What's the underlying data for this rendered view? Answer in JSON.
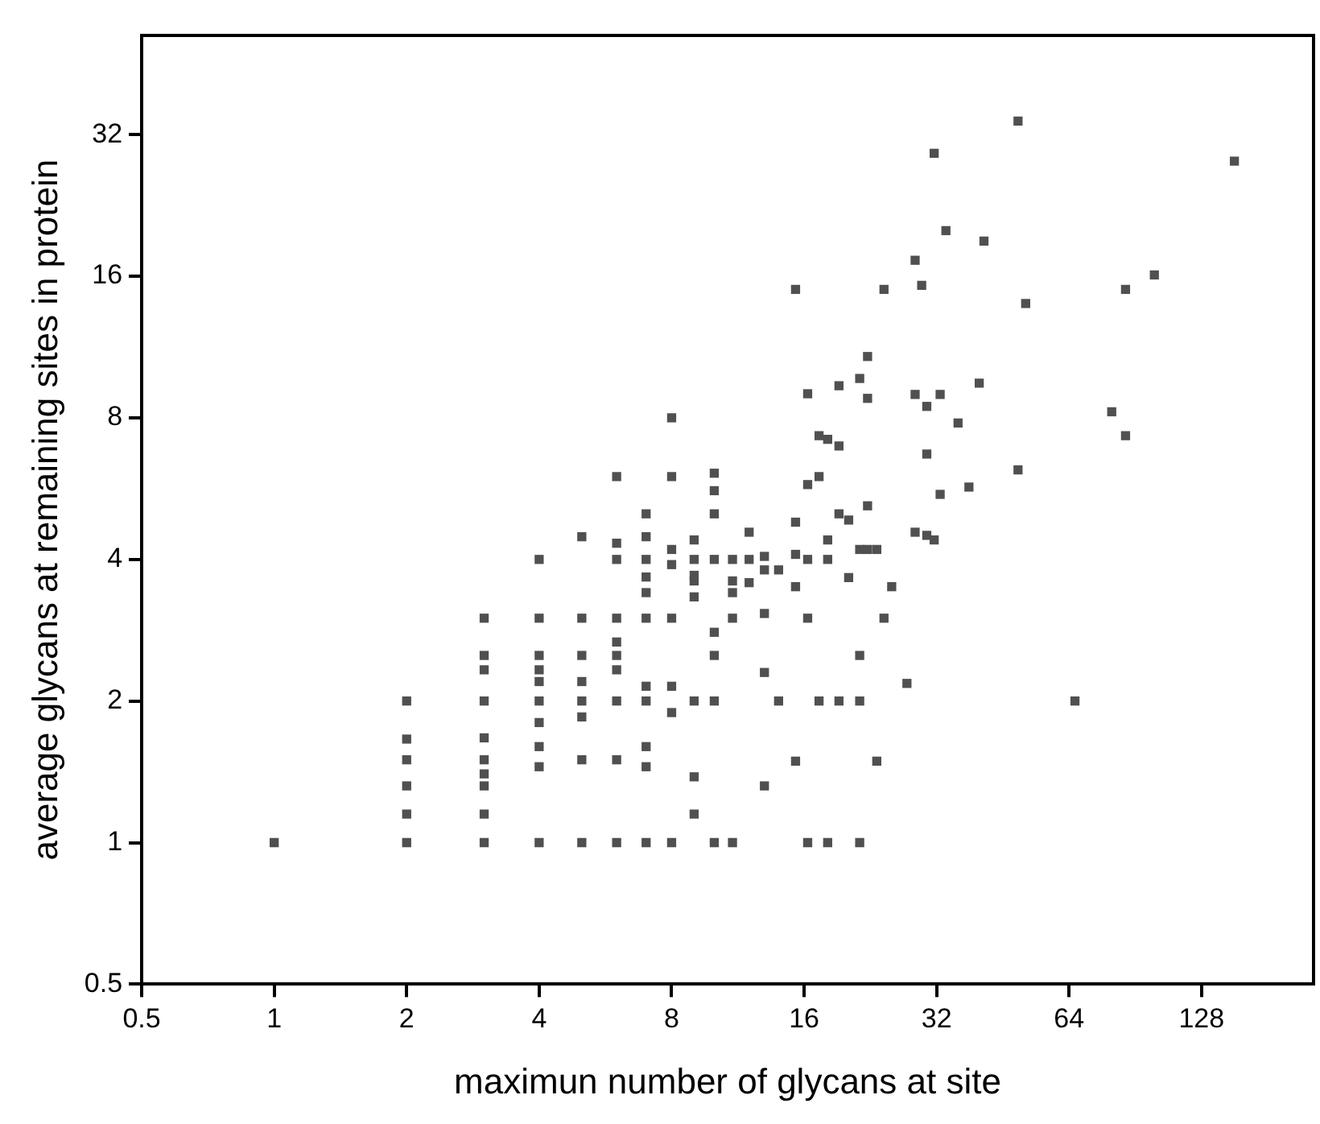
{
  "chart_data": {
    "type": "scatter",
    "xlabel": "maximun number of glycans at site",
    "ylabel": "average glycans at remaining sites in protein",
    "log": "xy",
    "grid": false,
    "legend": false,
    "marker": "square",
    "xlim": [
      0.5,
      230
    ],
    "ylim": [
      0.5,
      52
    ],
    "xticks": [
      0.5,
      1,
      2,
      4,
      8,
      16,
      32,
      64,
      128
    ],
    "yticks": [
      0.5,
      1,
      2,
      4,
      8,
      16,
      32
    ],
    "series": [
      {
        "color": "#505050",
        "x": [
          1,
          2,
          2,
          2,
          2,
          2,
          2,
          3,
          3,
          3,
          3,
          3,
          3,
          3,
          3,
          3,
          3,
          4,
          4,
          4,
          4,
          4,
          4,
          4,
          4,
          4,
          4,
          5,
          5,
          5,
          5,
          5,
          5,
          5,
          5,
          6,
          6,
          6,
          6,
          6,
          6,
          6,
          6,
          6,
          6,
          7,
          7,
          7,
          7,
          7,
          7,
          7,
          7,
          7,
          7,
          7,
          8,
          8,
          8,
          8,
          8,
          8,
          8,
          8,
          9,
          9,
          9,
          9,
          9,
          9,
          9,
          9,
          10,
          10,
          10,
          10,
          10,
          10,
          10,
          10,
          11,
          11,
          11,
          11,
          11,
          12,
          12,
          12,
          13,
          13,
          13,
          13,
          13,
          14,
          14,
          15.3,
          15.3,
          15.3,
          15.3,
          15.3,
          16.3,
          16.3,
          16.3,
          16.3,
          16.3,
          17.3,
          17.3,
          17.3,
          18.1,
          18.1,
          18.1,
          18.1,
          19.2,
          19.2,
          19.2,
          19.2,
          20.2,
          20.2,
          21.4,
          21.4,
          21.4,
          21.4,
          21.4,
          22.3,
          22.3,
          22.3,
          22.3,
          23.4,
          23.4,
          24.3,
          24.3,
          25.3,
          27.4,
          28.6,
          28.6,
          28.6,
          29.6,
          30.4,
          30.4,
          30.4,
          31.6,
          31.6,
          32.6,
          32.6,
          33.6,
          35.8,
          37.9,
          40,
          41,
          49,
          49,
          51,
          66,
          80,
          86,
          86,
          100,
          152
        ],
        "values": [
          1,
          1,
          1.15,
          1.32,
          1.5,
          1.66,
          2,
          1,
          1.15,
          1.32,
          1.4,
          1.5,
          1.67,
          2,
          2.33,
          2.5,
          3,
          1,
          1.45,
          1.6,
          1.8,
          2,
          2.2,
          2.33,
          2.5,
          3,
          4,
          1,
          1.5,
          1.85,
          2,
          2.2,
          2.5,
          3,
          4.47,
          1,
          1.5,
          2,
          2.33,
          2.5,
          2.67,
          3,
          4,
          4.33,
          6,
          1,
          1.45,
          1.6,
          2,
          2.15,
          3,
          3.4,
          3.67,
          4,
          4.47,
          5,
          1,
          1.89,
          2.15,
          3,
          3.9,
          4.2,
          6,
          8,
          1.15,
          1.38,
          2,
          3.33,
          3.6,
          3.7,
          4,
          4.4,
          1,
          2,
          2.5,
          2.8,
          4,
          5,
          5.6,
          6.1,
          1,
          3,
          3.4,
          3.6,
          4,
          3.57,
          4,
          4.57,
          1.32,
          2.3,
          3.07,
          3.8,
          4.06,
          2,
          3.8,
          1.49,
          3.5,
          4.1,
          4.8,
          15,
          1,
          3,
          4,
          5.77,
          9,
          2,
          6,
          7.33,
          1,
          4,
          4.4,
          7.2,
          2,
          5,
          6.97,
          9.36,
          3.66,
          4.85,
          1,
          2,
          2.5,
          4.2,
          9.7,
          4.2,
          5.2,
          8.8,
          10.8,
          1.49,
          4.2,
          3,
          15,
          3.5,
          2.18,
          4.57,
          8.97,
          17.3,
          15.3,
          4.5,
          6.7,
          8.46,
          4.4,
          29.2,
          5.5,
          8.97,
          20,
          7.8,
          5.7,
          9.48,
          19,
          6.2,
          34.2,
          14,
          2,
          8.24,
          7.33,
          15,
          16.1,
          28.1
        ]
      }
    ]
  }
}
